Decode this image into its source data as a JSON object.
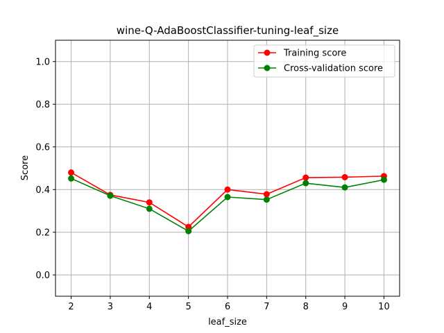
{
  "chart_data": {
    "type": "line",
    "title": "wine-Q-AdaBoostClassifier-tuning-leaf_size",
    "xlabel": "leaf_size",
    "ylabel": "Score",
    "x": [
      2,
      3,
      4,
      5,
      6,
      7,
      8,
      9,
      10
    ],
    "x_ticks": [
      "2",
      "3",
      "4",
      "5",
      "6",
      "7",
      "8",
      "9",
      "10"
    ],
    "xlim": [
      1.6,
      10.4
    ],
    "y_ticks": [
      "0.0",
      "0.2",
      "0.4",
      "0.6",
      "0.8",
      "1.0"
    ],
    "ylim": [
      -0.1,
      1.1
    ],
    "grid": true,
    "legend_position": "top-right",
    "series": [
      {
        "name": "Training score",
        "color": "#ff0000",
        "marker": "circle",
        "values": [
          0.48,
          0.375,
          0.34,
          0.225,
          0.4,
          0.378,
          0.456,
          0.458,
          0.463
        ]
      },
      {
        "name": "Cross-validation score",
        "color": "#008000",
        "marker": "circle",
        "values": [
          0.452,
          0.371,
          0.31,
          0.205,
          0.365,
          0.353,
          0.43,
          0.41,
          0.446
        ]
      }
    ]
  }
}
